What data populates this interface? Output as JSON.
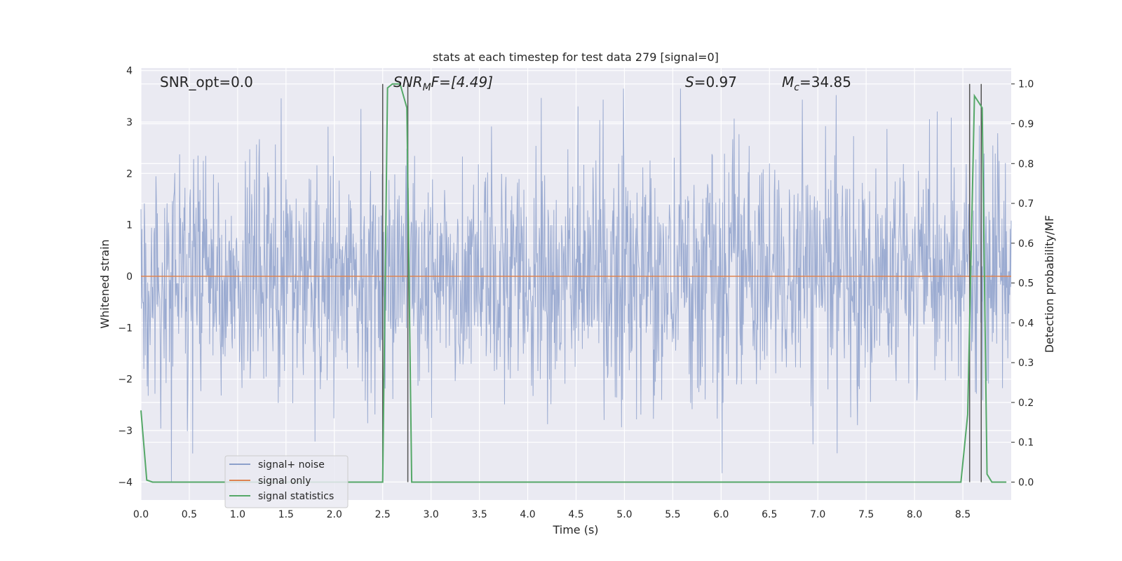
{
  "chart_data": {
    "type": "line",
    "title": "stats at each timestep for test data 279 [signal=0]",
    "xlabel": "Time (s)",
    "ylabel_left": "Whitened strain",
    "ylabel_right": "Detection probability/MF",
    "xlim": [
      0.0,
      9.0
    ],
    "ylim_left": [
      -4.35,
      4.05
    ],
    "ylim_right": [
      -0.045,
      1.04
    ],
    "x_ticks": [
      "0.0",
      "0.5",
      "1.0",
      "1.5",
      "2.0",
      "2.5",
      "3.0",
      "3.5",
      "4.0",
      "4.5",
      "5.0",
      "5.5",
      "6.0",
      "6.5",
      "7.0",
      "7.5",
      "8.0",
      "8.5"
    ],
    "y_ticks_left": [
      "4",
      "3",
      "2",
      "1",
      "0",
      "−1",
      "−2",
      "−3",
      "−4"
    ],
    "y_ticks_right": [
      "1.0",
      "0.9",
      "0.8",
      "0.7",
      "0.6",
      "0.5",
      "0.4",
      "0.3",
      "0.2",
      "0.1",
      "0.0"
    ],
    "grid": true,
    "legend_position": "lower-left",
    "colors": {
      "background": "#eaeaf2",
      "grid": "#ffffff",
      "signal_noise": "#8da0cb",
      "signal_only": "#dd8452",
      "signal_statistics": "#55a868",
      "event_lines": "#555555"
    },
    "series": [
      {
        "name": "signal+ noise",
        "axis": "left",
        "kind": "noise",
        "amplitude_std": 0.85,
        "range": [
          -4.0,
          3.65
        ]
      },
      {
        "name": "signal only",
        "axis": "left",
        "x": [
          0.0,
          9.0
        ],
        "y": [
          0.0,
          0.0
        ]
      },
      {
        "name": "signal statistics",
        "axis": "right",
        "x": [
          0.0,
          0.06,
          0.12,
          2.49,
          2.5,
          2.55,
          2.6,
          2.68,
          2.75,
          2.8,
          2.85,
          8.48,
          8.55,
          8.62,
          8.7,
          8.75,
          8.8,
          8.95
        ],
        "y": [
          0.18,
          0.005,
          0.0,
          0.0,
          0.0,
          0.99,
          1.0,
          1.0,
          0.94,
          0.0,
          0.0,
          0.0,
          0.17,
          0.97,
          0.94,
          0.02,
          0.0,
          0.0
        ]
      }
    ],
    "event_lines_x": [
      2.5,
      2.76,
      8.57,
      8.69
    ],
    "annotations": {
      "snr_opt": "SNR_opt=0.0",
      "snr_mf_label": "SNR",
      "snr_mf_sub": "M",
      "snr_mf_rest": "F=[4.49]",
      "s_label": "S",
      "s_value": "=0.97",
      "mc_label": "M",
      "mc_sub": "c",
      "mc_value": "=34.85"
    }
  }
}
